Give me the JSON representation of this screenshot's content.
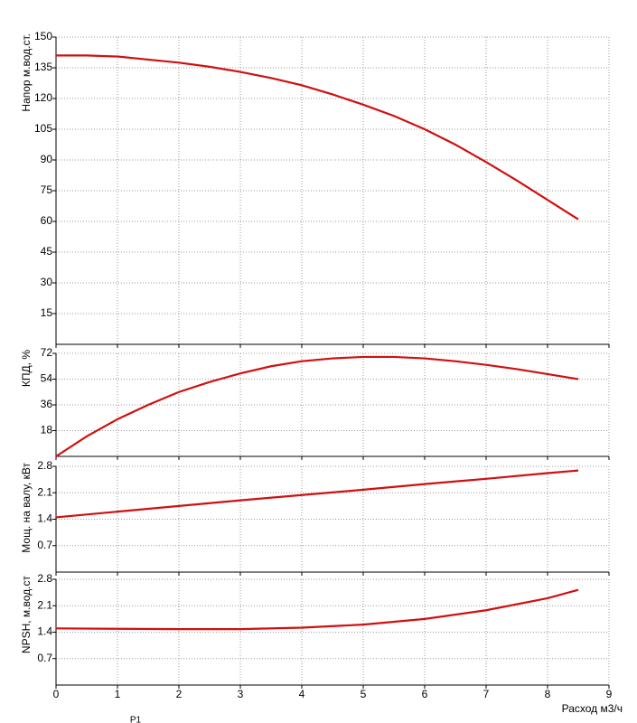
{
  "chart_data": [
    {
      "type": "line",
      "y_label": "Напор м.вод.ст.",
      "xlim": [
        0,
        9
      ],
      "xticks": [
        0,
        1,
        2,
        3,
        4,
        5,
        6,
        7,
        8,
        9
      ],
      "ylim": [
        0,
        150
      ],
      "yticks": [
        15,
        30,
        45,
        60,
        75,
        90,
        105,
        120,
        135,
        150
      ],
      "grid": true,
      "x": [
        0,
        0.5,
        1,
        1.5,
        2,
        2.5,
        3,
        3.5,
        4,
        4.5,
        5,
        5.5,
        6,
        6.5,
        7,
        7.5,
        8,
        8.5
      ],
      "series": [
        {
          "color": "#d01010",
          "values": [
            141,
            141,
            140.5,
            139,
            137.5,
            135.5,
            133,
            130,
            126.5,
            122,
            117,
            111.5,
            105,
            97.5,
            89,
            80,
            70.5,
            61
          ]
        }
      ]
    },
    {
      "type": "line",
      "y_label": "КПД, %",
      "xlim": [
        0,
        9
      ],
      "xticks": [
        0,
        1,
        2,
        3,
        4,
        5,
        6,
        7,
        8,
        9
      ],
      "ylim": [
        0,
        72
      ],
      "yticks": [
        18,
        36,
        54,
        72
      ],
      "grid": true,
      "x": [
        0,
        0.5,
        1,
        1.5,
        2,
        2.5,
        3,
        3.5,
        4,
        4.5,
        5,
        5.5,
        6,
        6.5,
        7,
        7.5,
        8,
        8.5
      ],
      "series": [
        {
          "color": "#d01010",
          "values": [
            0,
            14,
            26,
            36,
            45,
            52,
            58,
            63,
            66.5,
            68.5,
            69.5,
            69.5,
            68.5,
            66.5,
            64,
            61,
            57.5,
            54
          ]
        }
      ]
    },
    {
      "type": "line",
      "y_label": "Мощ. на валу, кВт",
      "xlim": [
        0,
        9
      ],
      "xticks": [
        0,
        1,
        2,
        3,
        4,
        5,
        6,
        7,
        8,
        9
      ],
      "ylim": [
        0,
        2.8
      ],
      "yticks": [
        0.7,
        1.4,
        2.1,
        2.8
      ],
      "grid": true,
      "x": [
        0,
        1,
        2,
        3,
        4,
        5,
        6,
        7,
        8,
        8.5
      ],
      "series": [
        {
          "color": "#d01010",
          "values": [
            1.45,
            1.6,
            1.75,
            1.9,
            2.04,
            2.18,
            2.33,
            2.47,
            2.62,
            2.69
          ]
        }
      ]
    },
    {
      "type": "line",
      "y_label": "NPSH, м.вод.ст",
      "x_label": "Расход м3/ч",
      "note": "P1",
      "xlim": [
        0,
        9
      ],
      "xticks": [
        0,
        1,
        2,
        3,
        4,
        5,
        6,
        7,
        8,
        9
      ],
      "ylim": [
        0,
        2.8
      ],
      "yticks": [
        0.7,
        1.4,
        2.1,
        2.8
      ],
      "grid": true,
      "x": [
        0,
        1,
        2,
        3,
        4,
        5,
        6,
        7,
        8,
        8.5
      ],
      "series": [
        {
          "color": "#d01010",
          "values": [
            1.5,
            1.49,
            1.48,
            1.48,
            1.52,
            1.6,
            1.75,
            1.98,
            2.3,
            2.52
          ]
        }
      ]
    }
  ]
}
